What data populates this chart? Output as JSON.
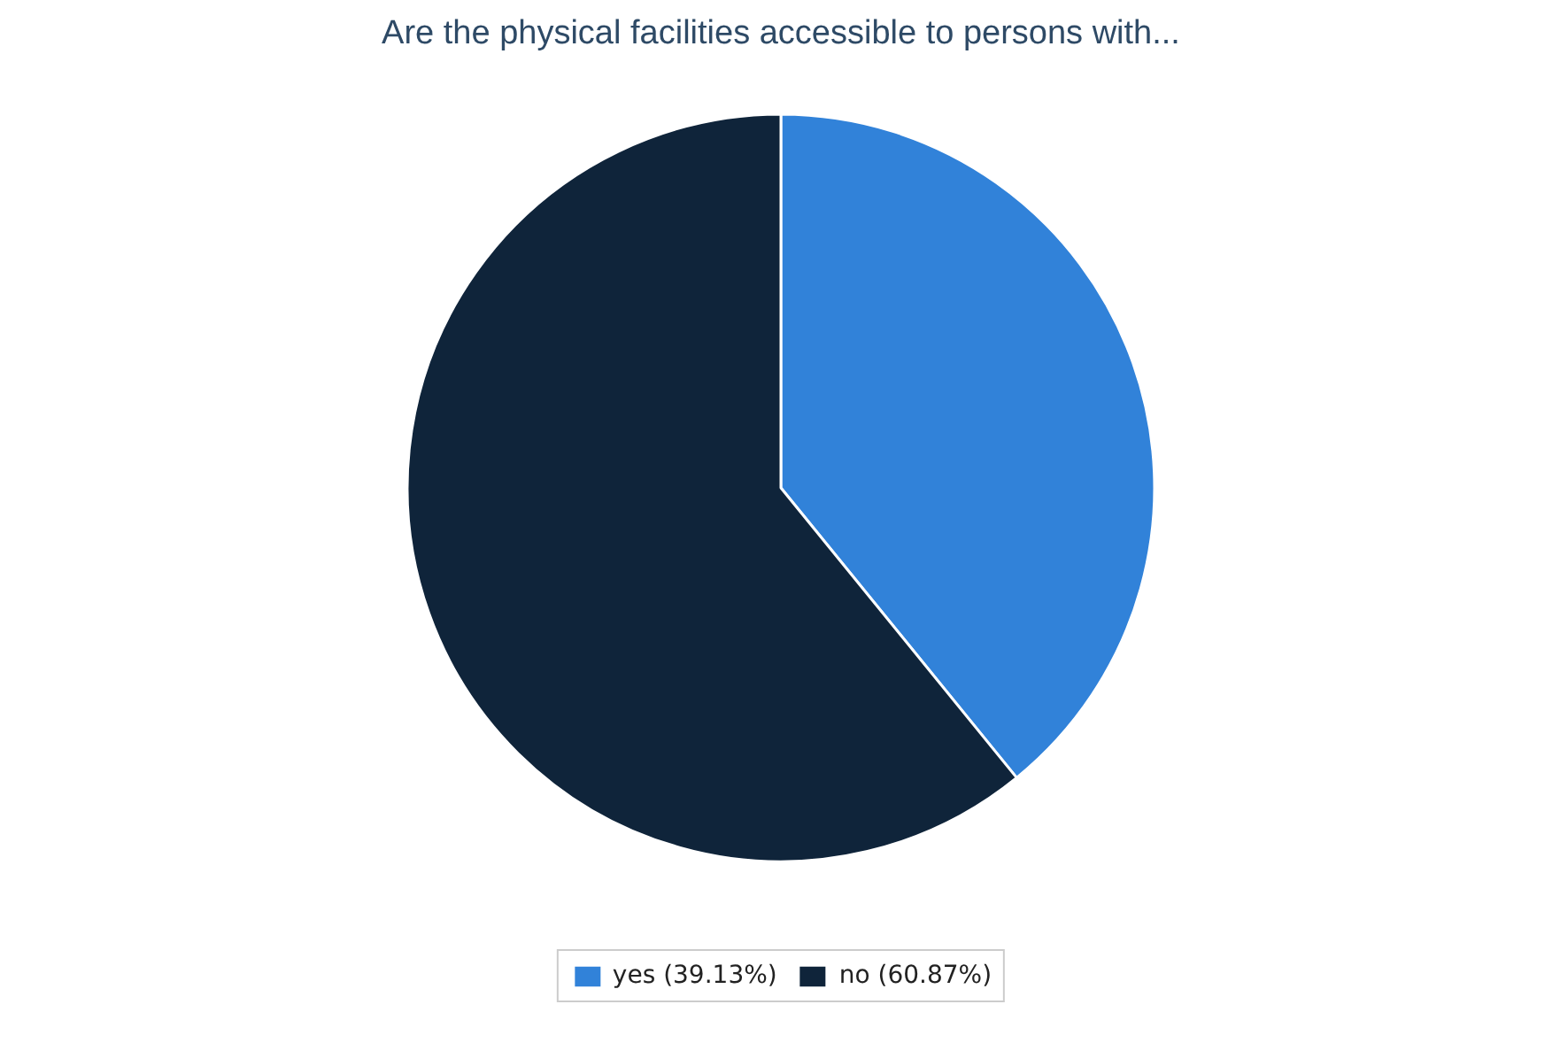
{
  "chart_data": {
    "type": "pie",
    "title": "Are the physical facilities accessible to persons with...",
    "categories": [
      "yes (39.13%)",
      "no (60.87%)"
    ],
    "values": [
      39.13,
      60.87
    ],
    "colors": [
      "#3182d9",
      "#0f243a"
    ],
    "legend": "bottom"
  }
}
